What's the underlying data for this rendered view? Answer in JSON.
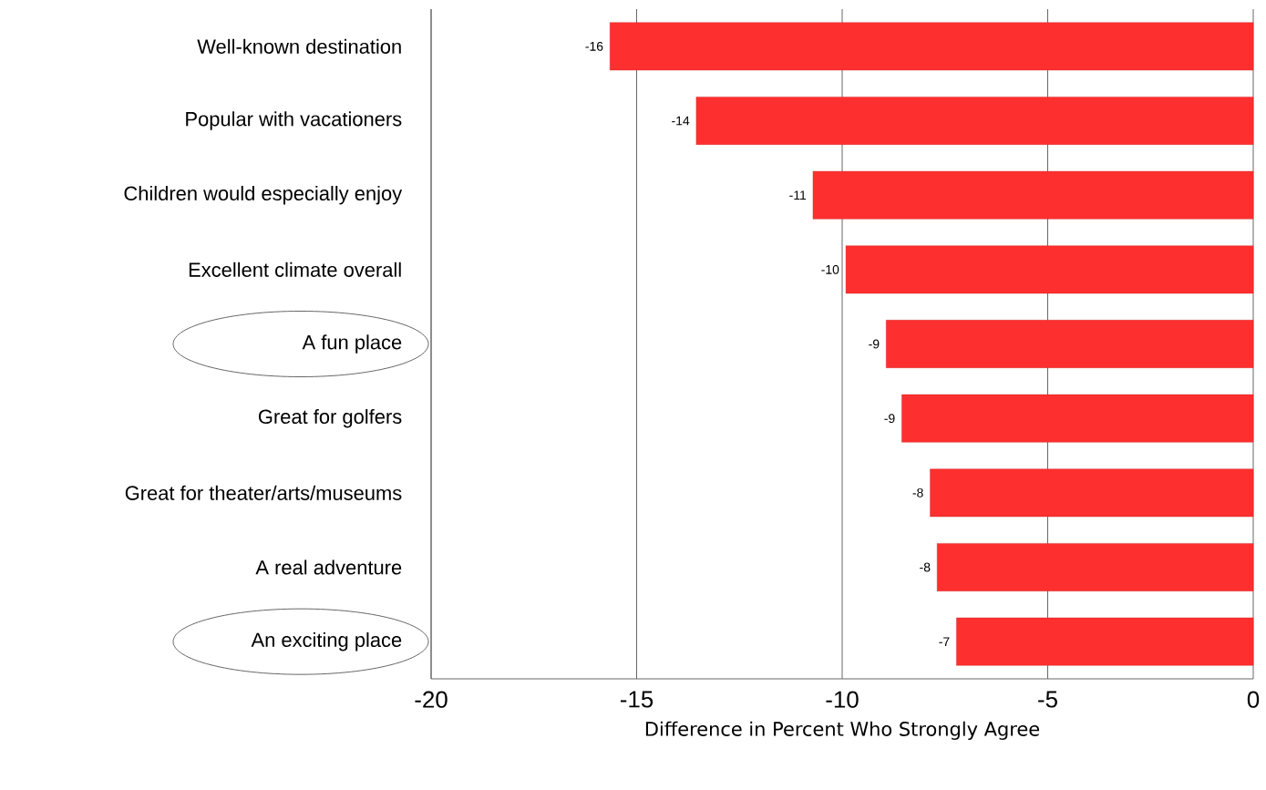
{
  "chart_data": {
    "type": "bar",
    "orientation": "horizontal",
    "categories": [
      "Well-known destination",
      "Popular with vacationers",
      "Children would especially enjoy",
      "Excellent climate overall",
      "A fun place",
      "Great for golfers",
      "Great for theater/arts/museums",
      "A real adventure",
      "An exciting place"
    ],
    "values": [
      -15.65,
      -13.55,
      -10.71,
      -9.91,
      -8.93,
      -8.55,
      -7.86,
      -7.69,
      -7.22
    ],
    "value_labels": [
      "-16",
      "-14",
      "-11",
      "-10",
      "-9",
      "-9",
      "-8",
      "-8",
      "-7"
    ],
    "color": "#fe2f2f",
    "xlim": [
      -20,
      0
    ],
    "xticks": [
      -20,
      -15,
      -10,
      -5,
      0
    ],
    "xlabel": "Difference in Percent Who Strongly Agree",
    "grid": "x"
  }
}
